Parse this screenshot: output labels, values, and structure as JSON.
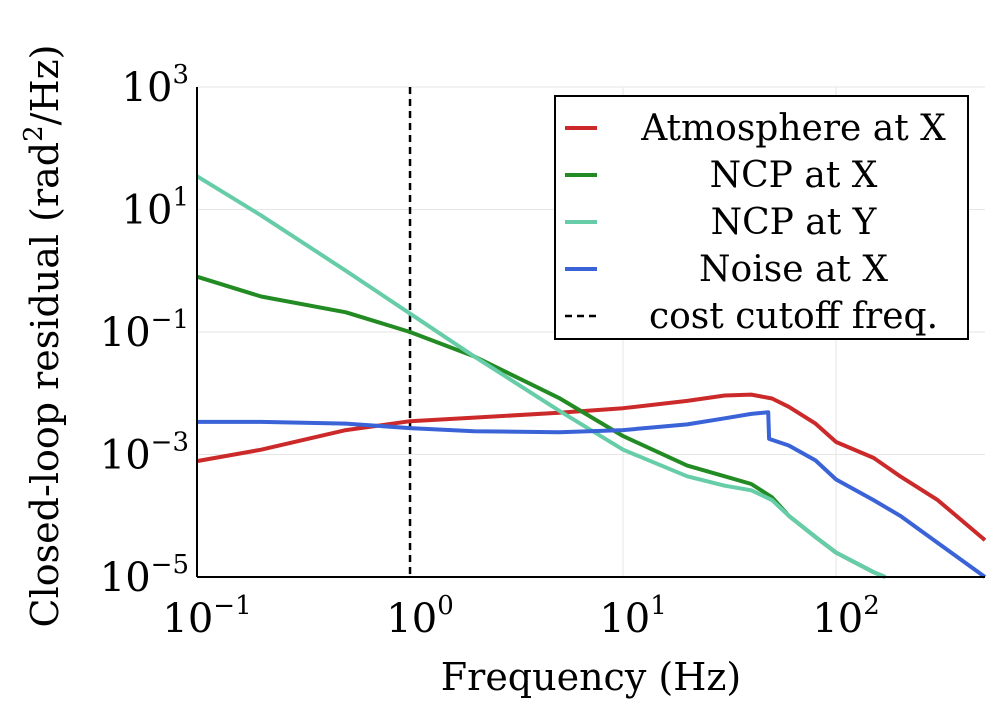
{
  "chart_data": {
    "type": "line",
    "title": "",
    "xlabel": "Frequency (Hz)",
    "ylabel_base": "Closed-loop residual (rad",
    "ylabel_sup": "2",
    "ylabel_tail": "/Hz)",
    "xscale": "log",
    "yscale": "log",
    "xlim": [
      0.1,
      500
    ],
    "ylim": [
      1e-05,
      1000
    ],
    "grid": true,
    "legend_position": "top-right",
    "x_ticks": [
      {
        "value": 0.1,
        "base": "10",
        "exp": "−1"
      },
      {
        "value": 1,
        "base": "10",
        "exp": "0"
      },
      {
        "value": 10,
        "base": "10",
        "exp": "1"
      },
      {
        "value": 100,
        "base": "10",
        "exp": "2"
      }
    ],
    "y_ticks": [
      {
        "value": 1e-05,
        "base": "10",
        "exp": "−5"
      },
      {
        "value": 0.001,
        "base": "10",
        "exp": "−3"
      },
      {
        "value": 0.1,
        "base": "10",
        "exp": "−1"
      },
      {
        "value": 10,
        "base": "10",
        "exp": "1"
      },
      {
        "value": 1000,
        "base": "10",
        "exp": "3"
      }
    ],
    "series": [
      {
        "name": "Atmosphere at X",
        "color": "#cc2a2a",
        "x": [
          0.1,
          0.2,
          0.5,
          1,
          2,
          5,
          10,
          20,
          30,
          40,
          50,
          60,
          80,
          100,
          150,
          200,
          300,
          500
        ],
        "y": [
          0.00078,
          0.0012,
          0.0025,
          0.0035,
          0.004,
          0.0048,
          0.0057,
          0.0075,
          0.0092,
          0.0095,
          0.0082,
          0.006,
          0.0032,
          0.0016,
          0.00088,
          0.00044,
          0.00018,
          4e-05
        ]
      },
      {
        "name": "NCP at X",
        "color": "#238b23",
        "x": [
          0.1,
          0.2,
          0.5,
          1,
          2,
          5,
          10,
          20,
          30,
          40,
          50,
          60,
          80,
          100,
          150,
          170
        ],
        "y": [
          0.8,
          0.38,
          0.21,
          0.1,
          0.04,
          0.0084,
          0.002,
          0.00066,
          0.00044,
          0.00033,
          0.0002,
          0.0001,
          4.5e-05,
          2.5e-05,
          1.2e-05,
          1e-05
        ]
      },
      {
        "name": "NCP at Y",
        "color": "#66cda8",
        "x": [
          0.1,
          0.2,
          0.5,
          1,
          2,
          5,
          10,
          20,
          30,
          40,
          50,
          60,
          80,
          100,
          150,
          170
        ],
        "y": [
          35,
          8,
          1,
          0.2,
          0.04,
          0.0052,
          0.0012,
          0.00044,
          0.00031,
          0.00026,
          0.00018,
          0.0001,
          4.5e-05,
          2.5e-05,
          1.2e-05,
          1e-05
        ]
      },
      {
        "name": "Noise at X",
        "color": "#3a63d8",
        "x": [
          0.1,
          0.2,
          0.5,
          1,
          2,
          5,
          10,
          20,
          30,
          40,
          48,
          48.5,
          60,
          80,
          100,
          150,
          200,
          300,
          500
        ],
        "y": [
          0.0034,
          0.0034,
          0.0032,
          0.0027,
          0.0024,
          0.0023,
          0.0025,
          0.0031,
          0.0039,
          0.0046,
          0.0049,
          0.0018,
          0.0014,
          0.0008,
          0.00039,
          0.00018,
          0.0001,
          3.6e-05,
          1e-05
        ]
      }
    ],
    "reference_lines": [
      {
        "name": "cost cutoff freq.",
        "orientation": "vertical",
        "x": 1,
        "style": "dashed",
        "color": "#000000"
      }
    ]
  }
}
